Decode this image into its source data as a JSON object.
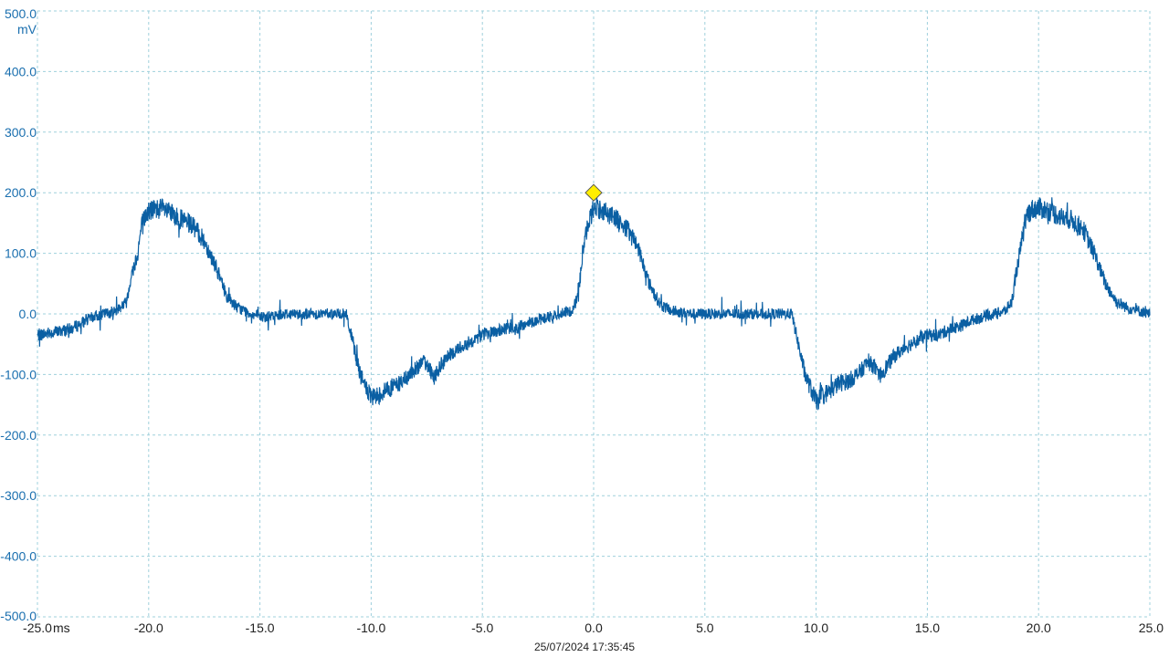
{
  "chart_data": {
    "type": "line",
    "x_unit": "ms",
    "y_unit": "mV",
    "xlim": [
      -25.0,
      25.0
    ],
    "ylim": [
      -500.0,
      500.0
    ],
    "x_ticks": [
      "-25.0",
      "-20.0",
      "-15.0",
      "-10.0",
      "-5.0",
      "0.0",
      "5.0",
      "10.0",
      "15.0",
      "20.0",
      "25.0"
    ],
    "y_ticks": [
      "500.0",
      "400.0",
      "300.0",
      "200.0",
      "100.0",
      "0.0",
      "-100.0",
      "-200.0",
      "-300.0",
      "-400.0",
      "-500.0"
    ],
    "grid": true,
    "series": [
      {
        "color": "#0a5fa3",
        "x": [
          -25.0,
          -23.5,
          -22.5,
          -21.5,
          -21.0,
          -20.8,
          -20.5,
          -20.3,
          -20.0,
          -19.5,
          -19.0,
          -18.5,
          -18.0,
          -17.5,
          -17.0,
          -16.5,
          -16.0,
          -15.5,
          -15.0,
          -14.5,
          -14.0,
          -13.0,
          -12.0,
          -11.5,
          -11.1,
          -11.0,
          -10.8,
          -10.5,
          -10.0,
          -9.7,
          -9.3,
          -9.0,
          -8.5,
          -8.0,
          -7.7,
          -7.4,
          -7.2,
          -7.0,
          -6.5,
          -6.0,
          -5.5,
          -5.0,
          -4.0,
          -3.5,
          -3.0,
          -2.0,
          -1.5,
          -1.0,
          -0.8,
          -0.6,
          -0.5,
          -0.3,
          -0.1,
          0.0,
          0.5,
          1.0,
          1.5,
          2.0,
          2.5,
          3.0,
          3.5,
          4.0,
          4.5,
          5.0,
          6.0,
          7.0,
          8.0,
          8.9,
          9.0,
          9.2,
          9.5,
          10.0,
          10.3,
          10.7,
          11.0,
          11.5,
          12.0,
          12.3,
          12.6,
          12.8,
          13.0,
          13.5,
          14.0,
          14.5,
          15.0,
          15.5,
          16.0,
          16.5,
          17.0,
          17.5,
          18.0,
          18.5,
          18.8,
          19.0,
          19.2,
          19.4,
          19.5,
          19.7,
          20.0,
          20.5,
          21.0,
          21.5,
          22.0,
          22.5,
          23.0,
          23.5,
          24.0,
          24.5,
          25.0
        ],
        "y": [
          -35,
          -25,
          -5,
          5,
          20,
          60,
          100,
          150,
          170,
          175,
          165,
          155,
          145,
          120,
          80,
          30,
          10,
          2,
          -5,
          -5,
          0,
          0,
          0,
          0,
          0,
          -20,
          -50,
          -100,
          -140,
          -135,
          -125,
          -120,
          -110,
          -90,
          -80,
          -85,
          -105,
          -95,
          -70,
          -55,
          -45,
          -35,
          -25,
          -25,
          -15,
          -5,
          0,
          5,
          20,
          60,
          100,
          140,
          165,
          175,
          170,
          160,
          140,
          110,
          50,
          15,
          5,
          2,
          0,
          0,
          0,
          0,
          0,
          0,
          -15,
          -50,
          -100,
          -145,
          -135,
          -125,
          -115,
          -110,
          -95,
          -80,
          -85,
          -105,
          -95,
          -70,
          -55,
          -45,
          -35,
          -35,
          -25,
          -20,
          -10,
          -5,
          0,
          5,
          20,
          70,
          110,
          150,
          165,
          172,
          175,
          170,
          160,
          155,
          140,
          100,
          50,
          20,
          10,
          5,
          0
        ]
      }
    ],
    "trigger_marker": {
      "x": 0.0,
      "y": 200.0,
      "color": "#ffee00"
    }
  },
  "timestamp": "25/07/2024 17:35:45"
}
